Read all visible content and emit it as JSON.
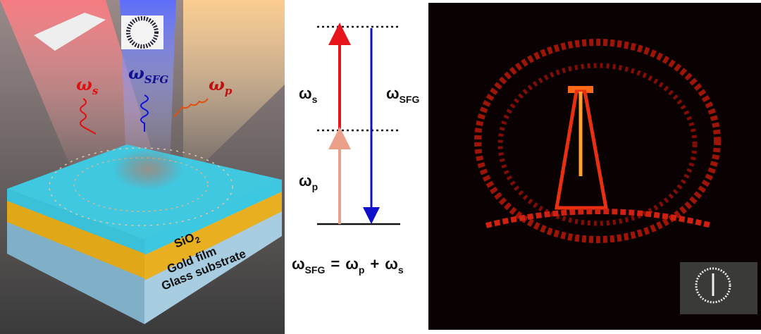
{
  "left_panel": {
    "beams": [
      {
        "symbol": "ω",
        "sub": "s"
      },
      {
        "symbol": "ω",
        "sub": "SFG"
      },
      {
        "symbol": "ω",
        "sub": "p"
      }
    ],
    "layers": [
      {
        "text": "SiO",
        "sub": "2"
      },
      {
        "text": "Gold film"
      },
      {
        "text": "Glass substrate"
      }
    ]
  },
  "energy_diagram": {
    "transitions": [
      {
        "symbol": "ω",
        "sub": "s"
      },
      {
        "symbol": "ω",
        "sub": "SFG"
      },
      {
        "symbol": "ω",
        "sub": "p"
      }
    ],
    "equation": {
      "lhs": {
        "symbol": "ω",
        "sub": "SFG"
      },
      "op1": "=",
      "t1": {
        "symbol": "ω",
        "sub": "p"
      },
      "op2": "+",
      "t2": {
        "symbol": "ω",
        "sub": "s"
      }
    }
  }
}
